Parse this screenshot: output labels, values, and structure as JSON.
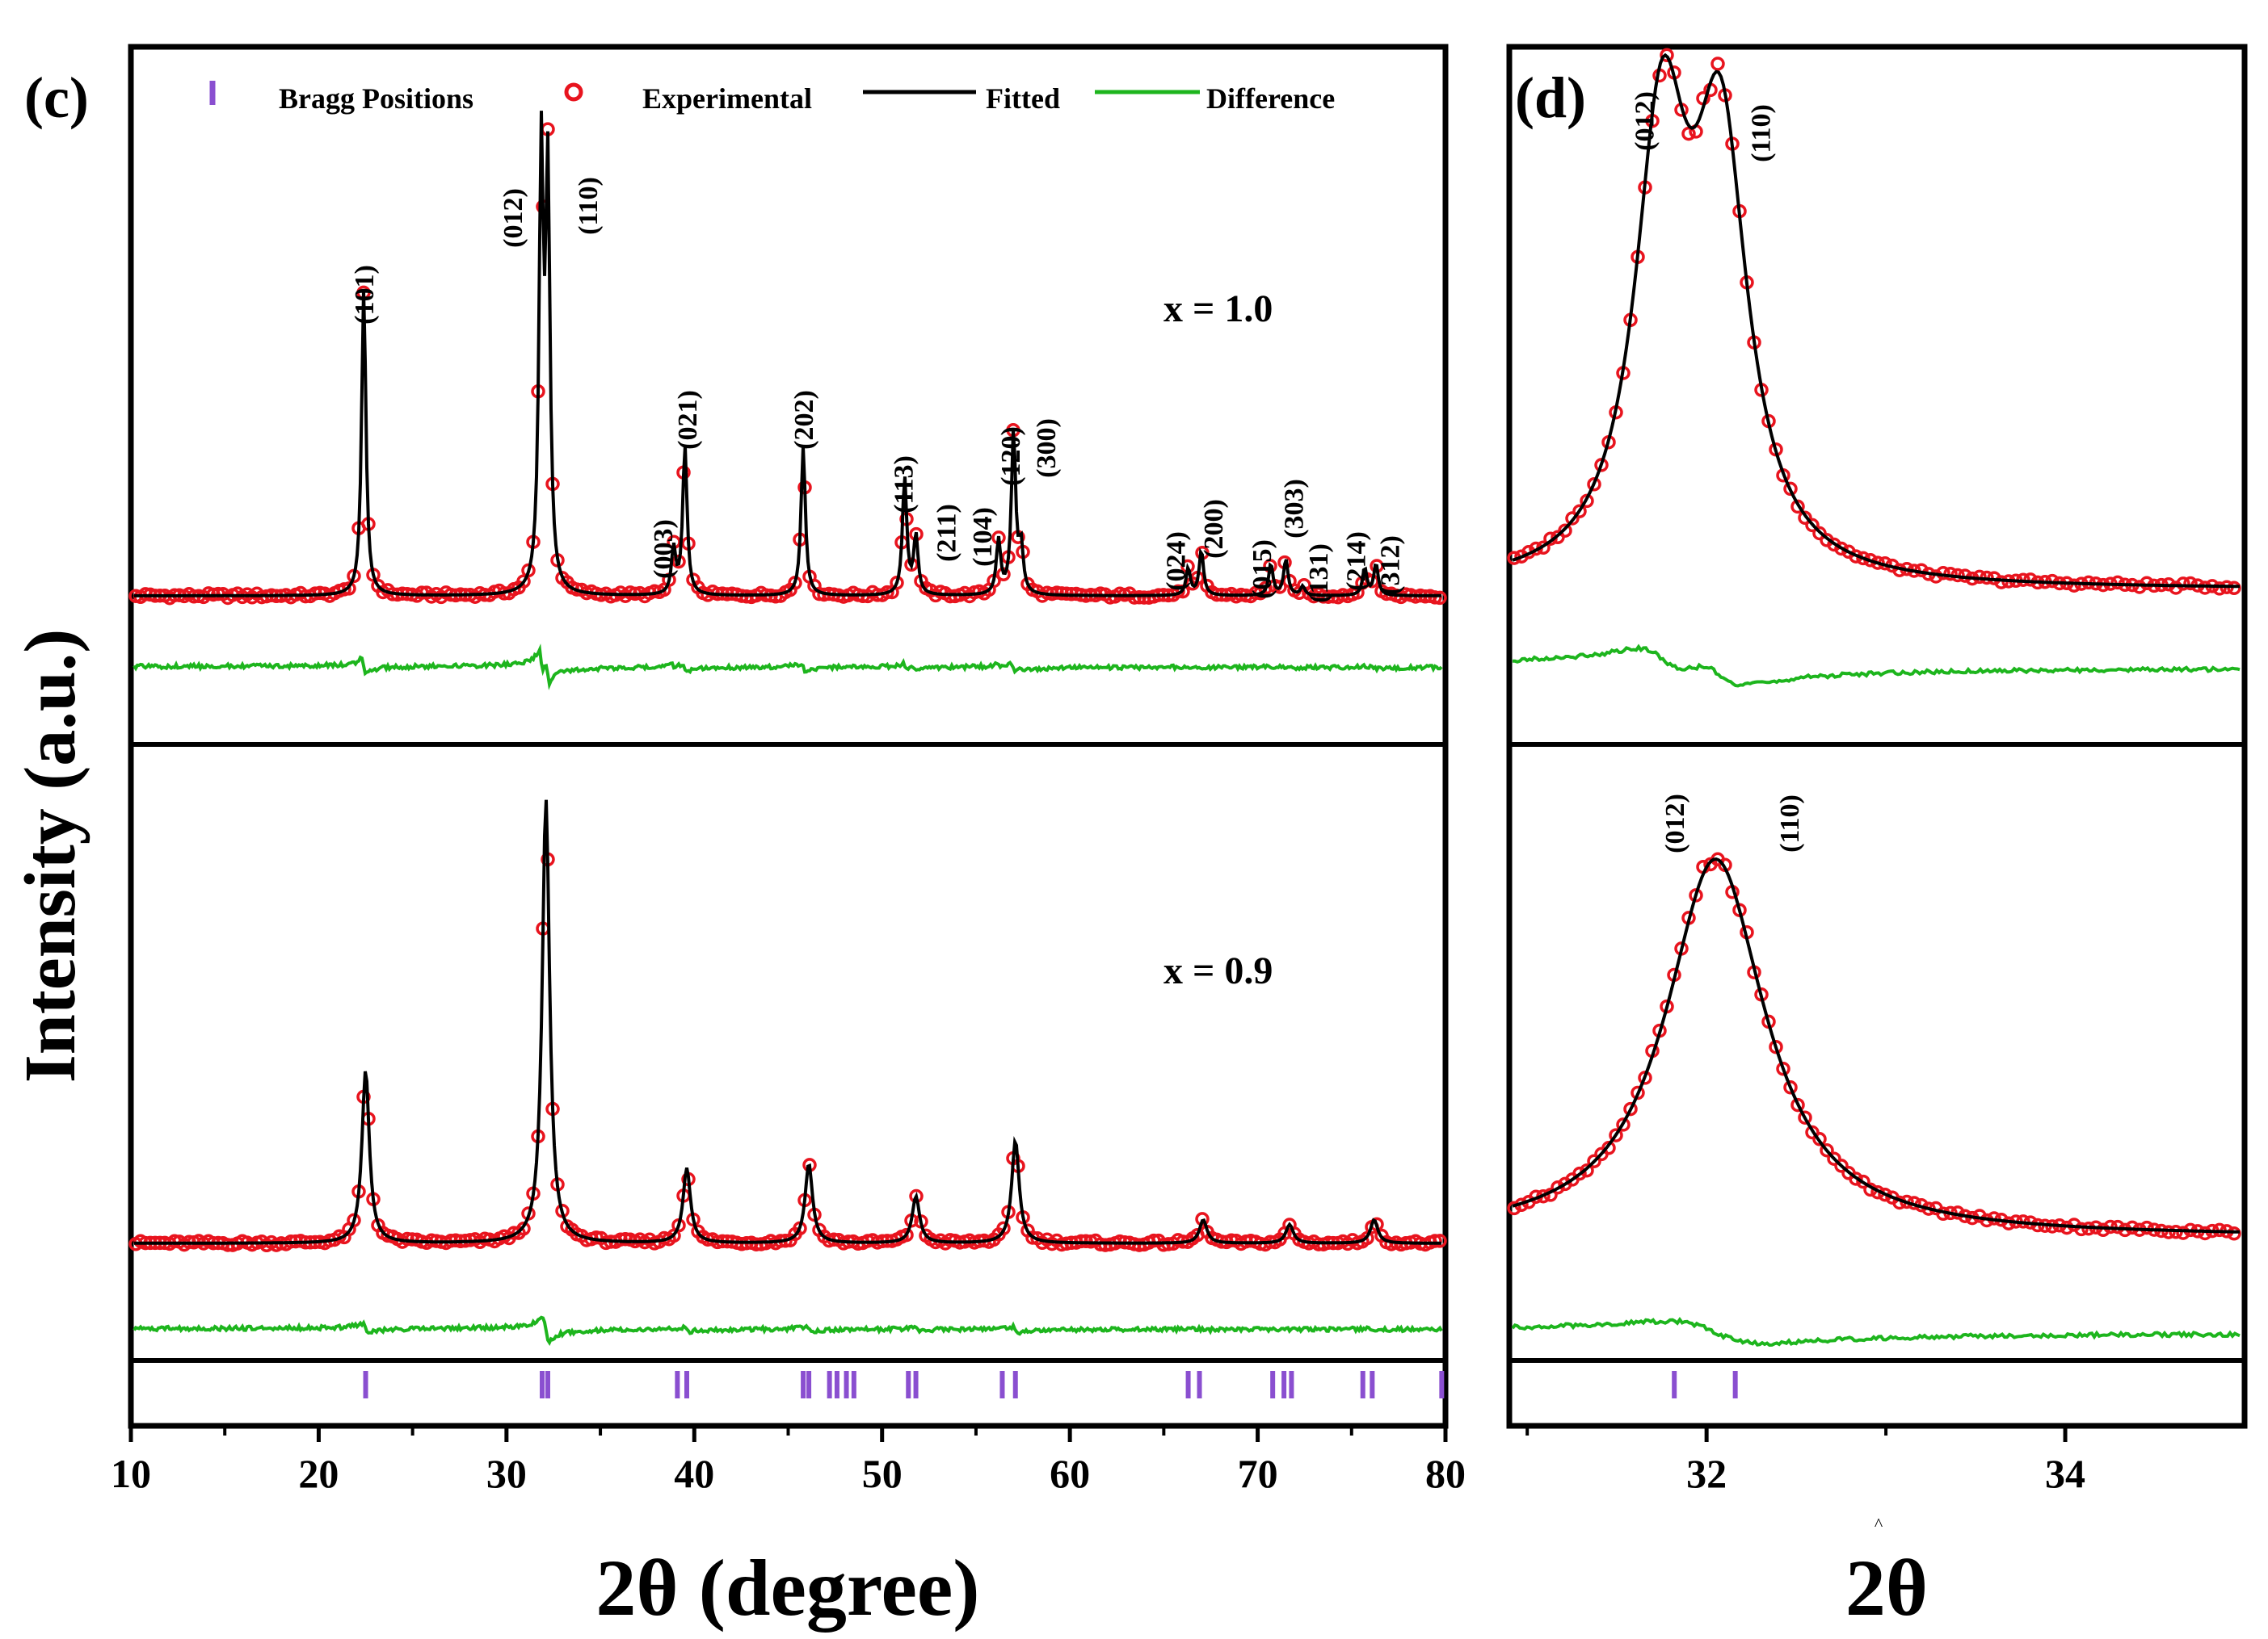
{
  "figure": {
    "y_axis_title": "Intensity (a.u.)",
    "colors": {
      "experimental": "#e8141e",
      "fitted": "#000000",
      "difference": "#1db51d",
      "bragg": "#8a4fd0"
    }
  },
  "legend": {
    "bragg": "Bragg Positions",
    "experimental": "Experimental",
    "fitted": "Fitted",
    "difference": "Difference"
  },
  "chart_data": [
    {
      "id": "c",
      "type": "line",
      "panel_label": "(c)",
      "title": "",
      "xlabel": "2θ (degree)",
      "ylabel": "Intensity (a.u.)",
      "xlim": [
        10,
        80
      ],
      "x_ticks": [
        10,
        20,
        30,
        40,
        50,
        60,
        70,
        80
      ],
      "bragg_positions": [
        22.5,
        31.9,
        32.2,
        39.1,
        39.6,
        45.8,
        46.1,
        47.2,
        47.6,
        48.1,
        48.5,
        51.4,
        51.8,
        56.4,
        57.1,
        66.3,
        66.9,
        70.8,
        71.4,
        71.8,
        75.6,
        76.1,
        79.8
      ],
      "series": [
        {
          "name": "x = 1.0",
          "composition_label": "x = 1.0",
          "peaks": [
            {
              "hkl": "(101)",
              "pos": 22.4,
              "height": 0.68
            },
            {
              "hkl": "(012)",
              "pos": 31.85,
              "height": 0.95
            },
            {
              "hkl": "(110)",
              "pos": 32.2,
              "height": 0.9
            },
            {
              "hkl": "(003)",
              "pos": 38.9,
              "height": 0.1
            },
            {
              "hkl": "(021)",
              "pos": 39.5,
              "height": 0.33
            },
            {
              "hkl": "(202)",
              "pos": 45.8,
              "height": 0.33
            },
            {
              "hkl": "(113)",
              "pos": 51.2,
              "height": 0.26
            },
            {
              "hkl": "(211)",
              "pos": 51.8,
              "height": 0.13
            },
            {
              "hkl": "(104)",
              "pos": 56.2,
              "height": 0.12
            },
            {
              "hkl": "(120)",
              "pos": 57.0,
              "height": 0.36
            },
            {
              "hkl": "(300)",
              "pos": 57.4,
              "height": 0.1
            },
            {
              "hkl": "(024)",
              "pos": 66.3,
              "height": 0.06
            },
            {
              "hkl": "(200)",
              "pos": 67.0,
              "height": 0.1
            },
            {
              "hkl": "(015)",
              "pos": 70.7,
              "height": 0.07
            },
            {
              "hkl": "(303)",
              "pos": 71.5,
              "height": 0.08
            },
            {
              "hkl": "(131)",
              "pos": 72.4,
              "height": 0.02
            },
            {
              "hkl": "(214)",
              "pos": 75.7,
              "height": 0.06
            },
            {
              "hkl": "(312)",
              "pos": 76.3,
              "height": 0.07
            }
          ],
          "labels": [
            {
              "text": "(101)",
              "x": 22.4
            },
            {
              "text": "(012)",
              "x": 30.3
            },
            {
              "text": "(110)",
              "x": 34.3
            },
            {
              "text": "(003)",
              "x": 38.3
            },
            {
              "text": "(021)",
              "x": 39.6
            },
            {
              "text": "(202)",
              "x": 45.8
            },
            {
              "text": "(113)",
              "x": 51.1
            },
            {
              "text": "(211)",
              "x": 53.4
            },
            {
              "text": "(104)",
              "x": 55.3
            },
            {
              "text": "(120)",
              "x": 56.8
            },
            {
              "text": "(300)",
              "x": 58.7
            },
            {
              "text": "(024)",
              "x": 65.6
            },
            {
              "text": "(200)",
              "x": 67.6
            },
            {
              "text": "(015)",
              "x": 70.2
            },
            {
              "text": "(303)",
              "x": 71.9
            },
            {
              "text": "(131)",
              "x": 73.2
            },
            {
              "text": "(214)",
              "x": 75.2
            },
            {
              "text": "(312)",
              "x": 77.0
            }
          ]
        },
        {
          "name": "x = 0.9",
          "composition_label": "x = 0.9",
          "peaks": [
            {
              "pos": 22.5,
              "height": 0.37
            },
            {
              "pos": 32.1,
              "height": 0.95
            },
            {
              "pos": 39.6,
              "height": 0.16
            },
            {
              "pos": 46.1,
              "height": 0.17
            },
            {
              "pos": 51.8,
              "height": 0.1
            },
            {
              "pos": 57.1,
              "height": 0.22
            },
            {
              "pos": 67.1,
              "height": 0.05
            },
            {
              "pos": 71.7,
              "height": 0.04
            },
            {
              "pos": 76.2,
              "height": 0.05
            }
          ]
        }
      ]
    },
    {
      "id": "d",
      "type": "line",
      "panel_label": "(d)",
      "title": "",
      "xlabel": "2θ",
      "xlabel_superscript": "^",
      "ylabel": "Intensity (a.u.)",
      "xlim": [
        30.9,
        35.0
      ],
      "x_ticks": [
        32,
        34
      ],
      "bragg_positions": [
        31.82,
        32.16
      ],
      "series": [
        {
          "name": "x = 1.0",
          "peaks": [
            {
              "hkl": "(012)",
              "pos": 31.75,
              "height": 0.98
            },
            {
              "hkl": "(110)",
              "pos": 32.08,
              "height": 0.93
            }
          ],
          "labels": [
            {
              "text": "(012)",
              "x": 31.65
            },
            {
              "text": "(110)",
              "x": 32.3
            }
          ]
        },
        {
          "name": "x = 0.9",
          "peaks": [
            {
              "hkl": "(012)",
              "pos": 32.05,
              "height": 0.9
            }
          ],
          "labels": [
            {
              "text": "(012)",
              "x": 31.82
            },
            {
              "text": "(110)",
              "x": 32.46
            }
          ]
        }
      ]
    }
  ]
}
